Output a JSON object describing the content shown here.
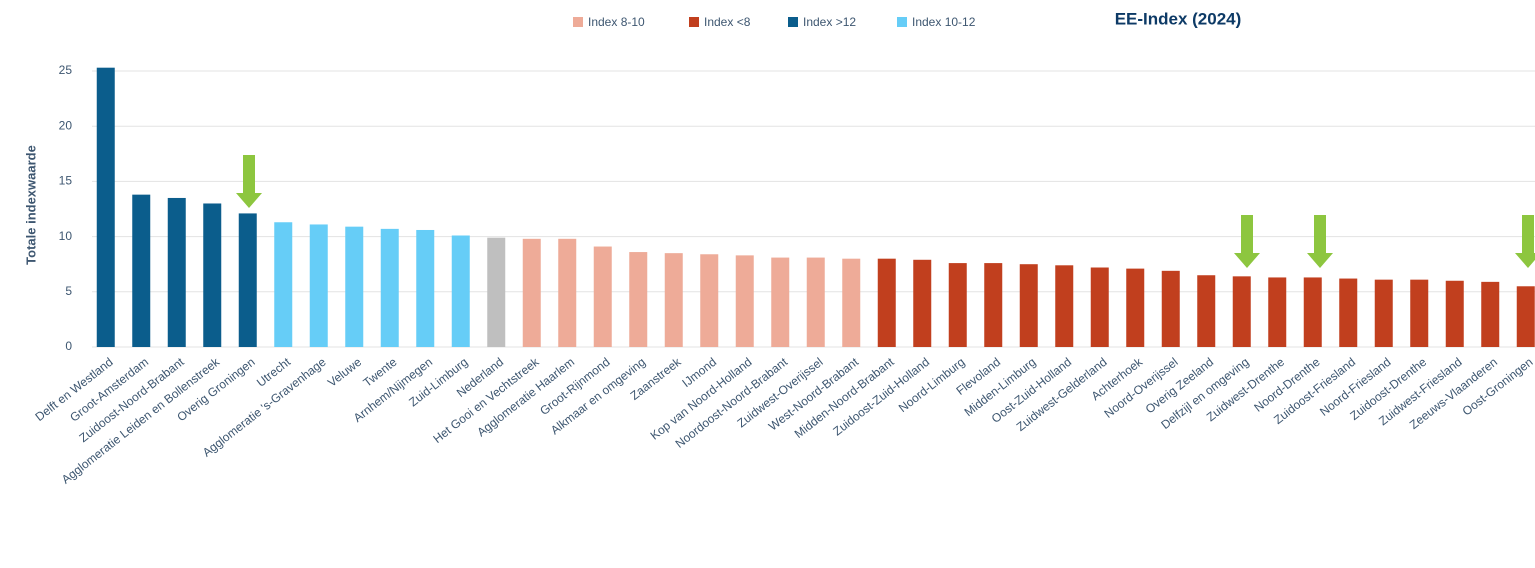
{
  "chart_data": {
    "type": "bar",
    "title": "EE-Index (2024)",
    "y_label": "Totale indexwaarde",
    "categories": [
      "Delft en Westland",
      "Groot-Amsterdam",
      "Zuidoost-Noord-Brabant",
      "Agglomeratie Leiden en Bollenstreek",
      "Overig Groningen",
      "Utrecht",
      "Agglomeratie 's-Gravenhage",
      "Veluwe",
      "Twente",
      "Arnhem/Nijmegen",
      "Zuid-Limburg",
      "Nederland",
      "Het Gooi en Vechtstreek",
      "Agglomeratie Haarlem",
      "Groot-Rijnmond",
      "Alkmaar en omgeving",
      "Zaanstreek",
      "IJmond",
      "Kop van Noord-Holland",
      "Noordoost-Noord-Brabant",
      "Zuidwest-Overijssel",
      "West-Noord-Brabant",
      "Midden-Noord-Brabant",
      "Zuidoost-Zuid-Holland",
      "Noord-Limburg",
      "Flevoland",
      "Midden-Limburg",
      "Oost-Zuid-Holland",
      "Zuidwest-Gelderland",
      "Achterhoek",
      "Noord-Overijssel",
      "Overig Zeeland",
      "Delfzijl en omgeving",
      "Zuidwest-Drenthe",
      "Noord-Drenthe",
      "Zuidoost-Friesland",
      "Noord-Friesland",
      "Zuidoost-Drenthe",
      "Zuidwest-Friesland",
      "Zeeuws-Vlaanderen",
      "Oost-Groningen"
    ],
    "values": [
      25.3,
      13.8,
      13.5,
      13.0,
      12.1,
      11.3,
      11.1,
      10.9,
      10.7,
      10.6,
      10.1,
      9.9,
      9.8,
      9.8,
      9.1,
      8.6,
      8.5,
      8.4,
      8.3,
      8.1,
      8.1,
      8.0,
      8.0,
      7.9,
      7.6,
      7.6,
      7.5,
      7.4,
      7.2,
      7.1,
      6.9,
      6.5,
      6.4,
      6.3,
      6.3,
      6.2,
      6.1,
      6.1,
      6.0,
      5.9,
      5.5
    ],
    "colors": [
      "#0b5d8c",
      "#0b5d8c",
      "#0b5d8c",
      "#0b5d8c",
      "#0b5d8c",
      "#66cdf7",
      "#66cdf7",
      "#66cdf7",
      "#66cdf7",
      "#66cdf7",
      "#66cdf7",
      "#bfbfbf",
      "#eeab98",
      "#eeab98",
      "#eeab98",
      "#eeab98",
      "#eeab98",
      "#eeab98",
      "#eeab98",
      "#eeab98",
      "#eeab98",
      "#eeab98",
      "#c13f1e",
      "#c13f1e",
      "#c13f1e",
      "#c13f1e",
      "#c13f1e",
      "#c13f1e",
      "#c13f1e",
      "#c13f1e",
      "#c13f1e",
      "#c13f1e",
      "#c13f1e",
      "#c13f1e",
      "#c13f1e",
      "#c13f1e",
      "#c13f1e",
      "#c13f1e",
      "#c13f1e",
      "#c13f1e",
      "#c13f1e"
    ],
    "legend": [
      {
        "name": "Index 8-10",
        "color": "#eeab98"
      },
      {
        "name": "Index <8",
        "color": "#c13f1e"
      },
      {
        "name": "Index >12",
        "color": "#0b5d8c"
      },
      {
        "name": "Index 10-12",
        "color": "#66cdf7"
      }
    ],
    "ylim": [
      0,
      25
    ],
    "yticks": [
      0,
      5,
      10,
      15,
      20,
      25
    ],
    "grid": true
  }
}
